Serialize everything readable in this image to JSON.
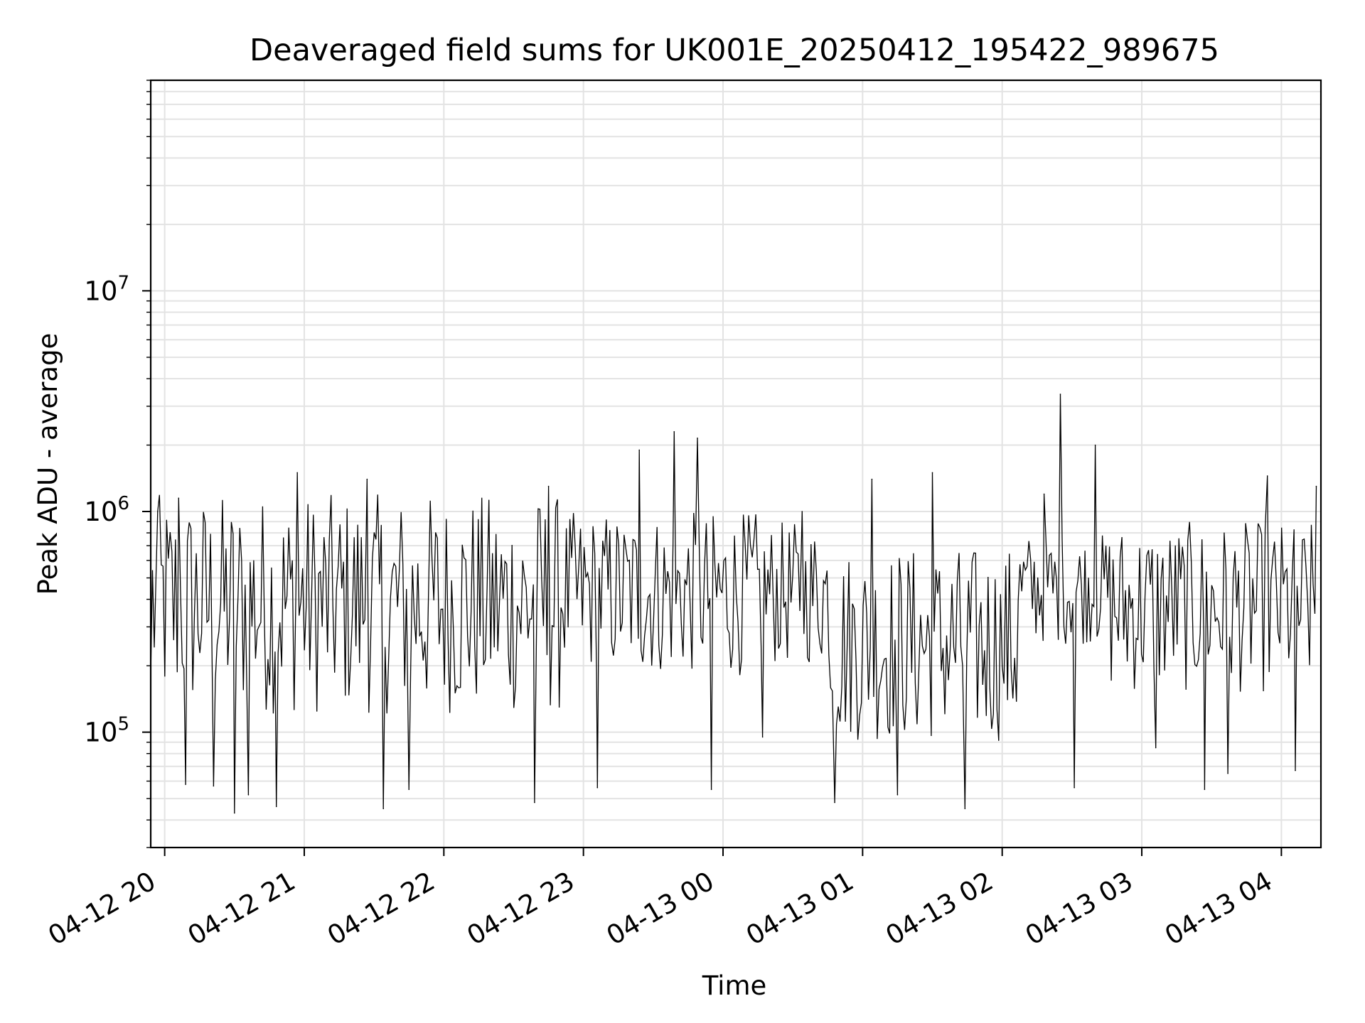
{
  "chart_data": {
    "type": "line",
    "title": "Deaveraged field sums for UK001E_20250412_195422_989675",
    "xlabel": "Time",
    "ylabel": "Peak ADU - average",
    "x_axis": {
      "kind": "datetime",
      "range": [
        "2025-04-12 19:54",
        "2025-04-13 04:17"
      ],
      "ticks": [
        "04-12 20",
        "04-12 21",
        "04-12 22",
        "04-12 23",
        "04-13 00",
        "04-13 01",
        "04-13 02",
        "04-13 03",
        "04-13 04"
      ],
      "tick_times": [
        "2025-04-12 20:00",
        "2025-04-12 21:00",
        "2025-04-12 22:00",
        "2025-04-12 23:00",
        "2025-04-13 00:00",
        "2025-04-13 01:00",
        "2025-04-13 02:00",
        "2025-04-13 03:00",
        "2025-04-13 04:00"
      ]
    },
    "y_axis": {
      "scale": "log",
      "ylim": [
        30000,
        90000000
      ],
      "ticks": [
        100000,
        1000000,
        10000000
      ],
      "tick_labels": [
        {
          "base": "10",
          "exp": "5"
        },
        {
          "base": "10",
          "exp": "6"
        },
        {
          "base": "10",
          "exp": "7"
        }
      ]
    },
    "grid": true,
    "series": [
      {
        "color": "#000000",
        "points": [
          {
            "t": "2025-04-12 19:54",
            "y": 180000
          },
          {
            "t": "2025-04-12 19:57",
            "y": 1000000
          },
          {
            "t": "2025-04-12 20:06",
            "y": 1150000
          },
          {
            "t": "2025-04-12 20:09",
            "y": 58000
          },
          {
            "t": "2025-04-12 20:21",
            "y": 57000
          },
          {
            "t": "2025-04-12 20:30",
            "y": 43000
          },
          {
            "t": "2025-04-12 20:36",
            "y": 52000
          },
          {
            "t": "2025-04-12 20:48",
            "y": 46000
          },
          {
            "t": "2025-04-12 20:57",
            "y": 1500000
          },
          {
            "t": "2025-04-12 21:27",
            "y": 1400000
          },
          {
            "t": "2025-04-12 21:34",
            "y": 45000
          },
          {
            "t": "2025-04-12 21:45",
            "y": 55000
          },
          {
            "t": "2025-04-12 22:39",
            "y": 48000
          },
          {
            "t": "2025-04-12 22:45",
            "y": 1300000
          },
          {
            "t": "2025-04-12 23:06",
            "y": 56000
          },
          {
            "t": "2025-04-12 23:24",
            "y": 1900000
          },
          {
            "t": "2025-04-12 23:39",
            "y": 2300000
          },
          {
            "t": "2025-04-12 23:49",
            "y": 2150000
          },
          {
            "t": "2025-04-12 23:55",
            "y": 55000
          },
          {
            "t": "2025-04-13 00:17",
            "y": 95000
          },
          {
            "t": "2025-04-13 00:34",
            "y": 1000000
          },
          {
            "t": "2025-04-13 00:48",
            "y": 48000
          },
          {
            "t": "2025-04-13 01:04",
            "y": 1400000
          },
          {
            "t": "2025-04-13 01:15",
            "y": 52000
          },
          {
            "t": "2025-04-13 01:30",
            "y": 1500000
          },
          {
            "t": "2025-04-13 01:44",
            "y": 45000
          },
          {
            "t": "2025-04-13 02:00",
            "y": 200000
          },
          {
            "t": "2025-04-13 02:18",
            "y": 1200000
          },
          {
            "t": "2025-04-13 02:25",
            "y": 3400000
          },
          {
            "t": "2025-04-13 02:31",
            "y": 56000
          },
          {
            "t": "2025-04-13 02:40",
            "y": 2000000
          },
          {
            "t": "2025-04-13 03:06",
            "y": 85000
          },
          {
            "t": "2025-04-13 03:27",
            "y": 55000
          },
          {
            "t": "2025-04-13 03:37",
            "y": 65000
          },
          {
            "t": "2025-04-13 03:54",
            "y": 1450000
          },
          {
            "t": "2025-04-13 04:06",
            "y": 67000
          },
          {
            "t": "2025-04-13 04:15",
            "y": 1300000
          }
        ]
      }
    ]
  }
}
